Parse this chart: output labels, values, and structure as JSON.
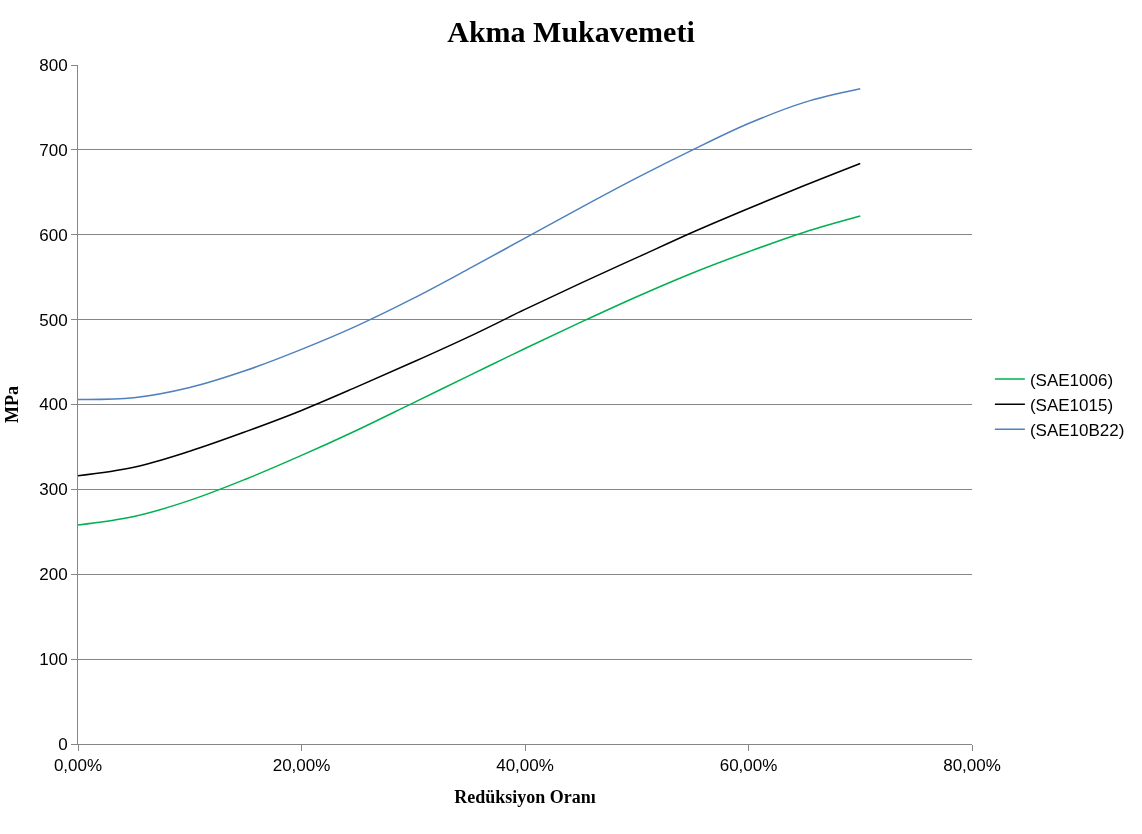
{
  "chart_data": {
    "type": "line",
    "title": "Akma Mukavemeti",
    "xlabel": "Redüksiyon Oranı",
    "ylabel": "MPa",
    "x": [
      0,
      0.05,
      0.1,
      0.15,
      0.2,
      0.25,
      0.3,
      0.35,
      0.4,
      0.45,
      0.5,
      0.55,
      0.6,
      0.65,
      0.7
    ],
    "series": [
      {
        "name": "(SAE1006)",
        "color": "#00b050",
        "values": [
          258,
          268,
          287,
          312,
          340,
          370,
          402,
          434,
          466,
          497,
          527,
          555,
          580,
          603,
          622
        ]
      },
      {
        "name": "(SAE1015)",
        "color": "#000000",
        "values": [
          316,
          326,
          345,
          368,
          393,
          421,
          450,
          480,
          512,
          543,
          573,
          603,
          631,
          658,
          684
        ]
      },
      {
        "name": "(SAE10B22)",
        "color": "#4f81bd",
        "values": [
          406,
          408,
          420,
          440,
          465,
          493,
          525,
          560,
          596,
          632,
          667,
          700,
          731,
          756,
          772
        ]
      }
    ],
    "xlim": [
      0,
      0.8
    ],
    "xticks": [
      {
        "value": 0,
        "label": "0,00%"
      },
      {
        "value": 0.2,
        "label": "20,00%"
      },
      {
        "value": 0.4,
        "label": "40,00%"
      },
      {
        "value": 0.6,
        "label": "60,00%"
      },
      {
        "value": 0.8,
        "label": "80,00%"
      }
    ],
    "ylim": [
      0,
      800
    ],
    "yticks": [
      0,
      100,
      200,
      300,
      400,
      500,
      600,
      700,
      800
    ],
    "grid": "y",
    "legend": "right",
    "marker": "none",
    "line_style": "solid"
  }
}
